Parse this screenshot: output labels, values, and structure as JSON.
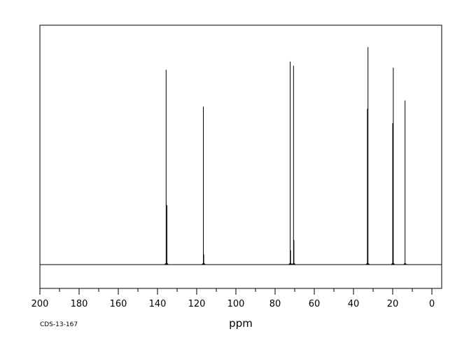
{
  "chart_data": {
    "type": "line",
    "xlabel": "ppm",
    "ylabel": "",
    "title": "",
    "xlim": [
      200,
      -5
    ],
    "ylim": [
      0,
      100
    ],
    "baseline": 0,
    "x_ticks": [
      200,
      180,
      160,
      140,
      120,
      100,
      80,
      60,
      40,
      20,
      0
    ],
    "x_tick_labels": [
      "200",
      "180",
      "160",
      "140",
      "120",
      "100",
      "80",
      "60",
      "40",
      "20",
      "0"
    ],
    "grid": false,
    "legend": "none",
    "annotation": "CDS-13-167",
    "peaks": [
      {
        "ppm": 135.6,
        "intensity": 95
      },
      {
        "ppm": 135.2,
        "intensity": 29
      },
      {
        "ppm": 116.6,
        "intensity": 77
      },
      {
        "ppm": 116.4,
        "intensity": 5
      },
      {
        "ppm": 72.3,
        "intensity": 99
      },
      {
        "ppm": 72.1,
        "intensity": 7
      },
      {
        "ppm": 70.6,
        "intensity": 97
      },
      {
        "ppm": 70.4,
        "intensity": 12
      },
      {
        "ppm": 32.6,
        "intensity": 106
      },
      {
        "ppm": 32.9,
        "intensity": 76
      },
      {
        "ppm": 19.7,
        "intensity": 96
      },
      {
        "ppm": 20.0,
        "intensity": 69
      },
      {
        "ppm": 13.7,
        "intensity": 80
      }
    ]
  }
}
